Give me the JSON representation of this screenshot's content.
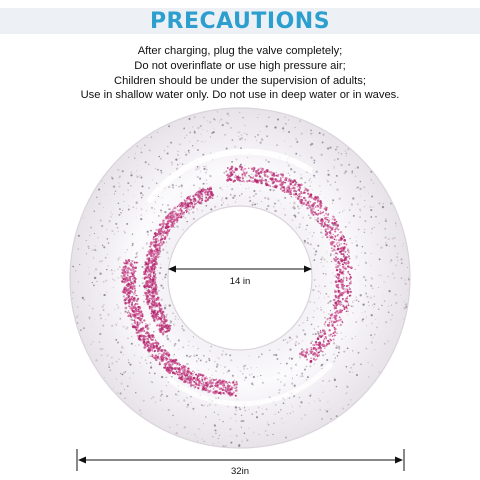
{
  "banner": {
    "title": "PRECAUTIONS",
    "title_color": "#2c9fcf",
    "band_color": "#edf1f5"
  },
  "precautions": [
    "After charging, plug the valve completely;",
    "Do not overinflate or use high pressure air;",
    "Children should be under the supervision of adults;",
    "Use in shallow water only. Do not use in deep water or in waves."
  ],
  "product": {
    "glitter_colors": [
      "#b3286e",
      "#d05a97",
      "#8a7f8c",
      "#c7b7c4"
    ],
    "inner_dimension": "14 in",
    "outer_dimension": "32in"
  }
}
